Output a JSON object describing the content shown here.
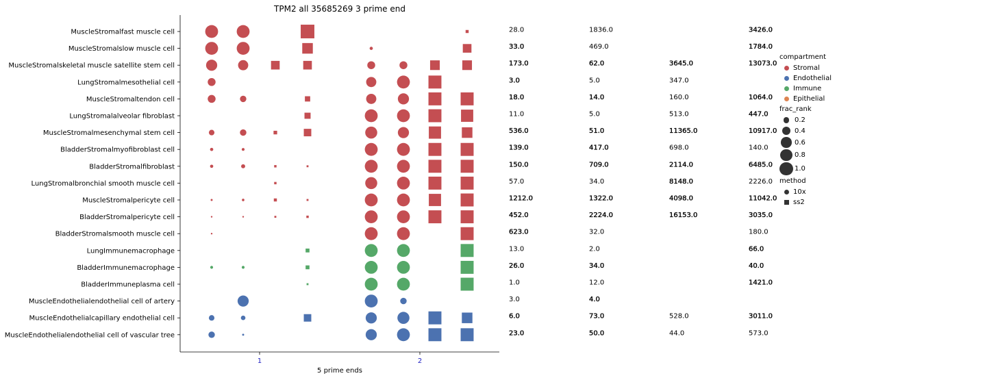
{
  "chart_data": {
    "type": "scatter",
    "title": "TPM2 all 35685269 3 prime end",
    "xlabel": "5 prime ends",
    "ylabel": "",
    "x_ticks": [
      "1",
      "2"
    ],
    "rows": [
      "MuscleStromalfast muscle cell",
      "MuscleStromalslow muscle cell",
      "MuscleStromalskeletal muscle satellite stem cell",
      "LungStromalmesothelial cell",
      "MuscleStromaltendon cell",
      "LungStromalalveolar fibroblast",
      "MuscleStromalmesenchymal stem cell",
      "BladderStromalmyofibroblast cell",
      "BladderStromalfibroblast",
      "LungStromalbronchial smooth muscle cell",
      "MuscleStromalpericyte cell",
      "BladderStromalpericyte cell",
      "BladderStromalsmooth muscle cell",
      "LungImmunemacrophage",
      "BladderImmunemacrophage",
      "BladderImmuneplasma cell",
      "MuscleEndothelialendothelial cell of artery",
      "MuscleEndothelialcapillary endothelial cell",
      "MuscleEndothelialendothelial cell of vascular tree"
    ],
    "row_compartment": [
      "Stromal",
      "Stromal",
      "Stromal",
      "Stromal",
      "Stromal",
      "Stromal",
      "Stromal",
      "Stromal",
      "Stromal",
      "Stromal",
      "Stromal",
      "Stromal",
      "Stromal",
      "Immune",
      "Immune",
      "Immune",
      "Endothelial",
      "Endothelial",
      "Endothelial"
    ],
    "columns": [
      {
        "x": 1,
        "method": "10x"
      },
      {
        "x": 1,
        "method": "10x"
      },
      {
        "x": 1,
        "method": "ss2"
      },
      {
        "x": 1,
        "method": "ss2"
      },
      {
        "x": 2,
        "method": "10x"
      },
      {
        "x": 2,
        "method": "10x"
      },
      {
        "x": 2,
        "method": "ss2"
      },
      {
        "x": 2,
        "method": "ss2"
      }
    ],
    "frac_rank": [
      [
        0.8,
        0.8,
        null,
        1.0,
        null,
        null,
        null,
        0.05
      ],
      [
        0.8,
        0.8,
        null,
        0.6,
        0.05,
        null,
        null,
        0.4
      ],
      [
        0.6,
        0.5,
        0.4,
        0.4,
        0.3,
        0.3,
        0.5,
        0.5
      ],
      [
        0.3,
        null,
        null,
        null,
        0.5,
        0.8,
        0.9,
        null
      ],
      [
        0.3,
        0.2,
        null,
        0.15,
        0.5,
        0.6,
        0.9,
        0.9
      ],
      [
        null,
        null,
        null,
        0.2,
        0.8,
        0.8,
        0.9,
        0.8
      ],
      [
        0.15,
        0.2,
        0.07,
        0.3,
        0.7,
        0.6,
        0.8,
        0.6
      ],
      [
        0.05,
        0.04,
        null,
        null,
        0.8,
        0.8,
        0.9,
        0.9
      ],
      [
        0.05,
        0.08,
        0.03,
        0.02,
        0.8,
        0.8,
        0.9,
        0.9
      ],
      [
        null,
        null,
        0.03,
        null,
        0.7,
        0.8,
        0.9,
        0.9
      ],
      [
        0.02,
        0.03,
        0.05,
        0.02,
        0.8,
        0.8,
        0.8,
        0.9
      ],
      [
        0.01,
        0.01,
        0.02,
        0.03,
        0.8,
        0.8,
        0.9,
        0.9
      ],
      [
        0.01,
        null,
        null,
        null,
        0.8,
        0.8,
        null,
        0.9
      ],
      [
        null,
        null,
        null,
        0.08,
        0.8,
        0.8,
        null,
        0.9
      ],
      [
        0.04,
        0.04,
        null,
        0.08,
        0.8,
        0.8,
        null,
        0.9
      ],
      [
        null,
        null,
        null,
        0.02,
        0.8,
        0.8,
        null,
        0.9
      ],
      [
        null,
        0.6,
        null,
        null,
        0.8,
        0.2,
        null,
        null
      ],
      [
        0.15,
        0.1,
        null,
        0.3,
        0.6,
        0.7,
        0.9,
        0.6
      ],
      [
        0.2,
        0.02,
        null,
        null,
        0.6,
        0.8,
        0.9,
        0.9
      ]
    ],
    "value_columns": [
      [
        "28.0",
        "33.0",
        "173.0",
        "3.0",
        "18.0",
        "11.0",
        "536.0",
        "139.0",
        "150.0",
        "57.0",
        "1212.0",
        "452.0",
        "623.0",
        "13.0",
        "26.0",
        "1.0",
        "3.0",
        "6.0",
        "23.0"
      ],
      [
        "1836.0",
        "469.0",
        "62.0",
        "5.0",
        "14.0",
        "5.0",
        "51.0",
        "417.0",
        "709.0",
        "34.0",
        "1322.0",
        "2224.0",
        "32.0",
        "2.0",
        "34.0",
        "12.0",
        "4.0",
        "73.0",
        "50.0"
      ],
      [
        "",
        "",
        "3645.0",
        "347.0",
        "160.0",
        "513.0",
        "11365.0",
        "698.0",
        "2114.0",
        "8148.0",
        "4098.0",
        "16153.0",
        "",
        "",
        "",
        "",
        "",
        "528.0",
        "44.0"
      ],
      [
        "3426.0",
        "1784.0",
        "13073.0",
        "",
        "1064.0",
        "447.0",
        "10917.0",
        "140.0",
        "6485.0",
        "2226.0",
        "11042.0",
        "3035.0",
        "180.0",
        "66.0",
        "40.0",
        "1421.0",
        "",
        "3011.0",
        "573.0"
      ]
    ],
    "value_bold": [
      [
        false,
        true,
        true,
        true,
        true,
        false,
        true,
        true,
        true,
        false,
        true,
        true,
        true,
        false,
        true,
        false,
        false,
        true,
        true
      ],
      [
        false,
        false,
        true,
        false,
        true,
        false,
        true,
        true,
        true,
        false,
        true,
        true,
        false,
        false,
        true,
        false,
        true,
        true,
        true
      ],
      [
        false,
        false,
        true,
        false,
        false,
        false,
        true,
        false,
        true,
        true,
        true,
        true,
        false,
        false,
        false,
        false,
        false,
        false,
        false
      ],
      [
        true,
        true,
        true,
        false,
        true,
        true,
        true,
        false,
        true,
        false,
        true,
        true,
        false,
        true,
        true,
        true,
        false,
        true,
        false
      ]
    ],
    "legend": {
      "compartment_title": "compartment",
      "compartments": [
        {
          "name": "Stromal",
          "color": "#c44e52"
        },
        {
          "name": "Endothelial",
          "color": "#4c72b0"
        },
        {
          "name": "Immune",
          "color": "#55a868"
        },
        {
          "name": "Epithelial",
          "color": "#dd8452"
        }
      ],
      "size_title": "frac_rank",
      "sizes": [
        {
          "label": "0.2",
          "value": 0.2
        },
        {
          "label": "0.4",
          "value": 0.4
        },
        {
          "label": "0.6",
          "value": 0.6
        },
        {
          "label": "0.8",
          "value": 0.8
        },
        {
          "label": "1.0",
          "value": 1.0
        }
      ],
      "method_title": "method",
      "methods": [
        {
          "name": "10x",
          "marker": "circle"
        },
        {
          "name": "ss2",
          "marker": "square"
        }
      ],
      "placement": "right"
    },
    "grid": false,
    "colors": {
      "Stromal": "#c44e52",
      "Endothelial": "#4c72b0",
      "Immune": "#55a868",
      "Epithelial": "#dd8452",
      "tick_label": "#1f1fc2",
      "legend_marker": "#333333"
    }
  }
}
